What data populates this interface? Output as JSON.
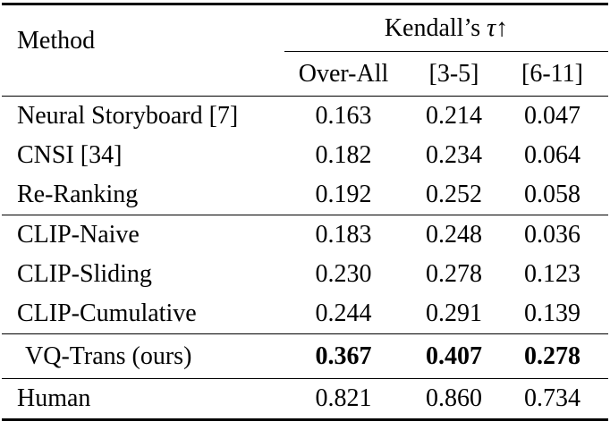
{
  "page": {
    "background_color": "#ffffff",
    "text_color": "#000000",
    "rule_color": "#000000"
  },
  "table": {
    "method_header": "Method",
    "group_header": {
      "prefix": "Kendall’s ",
      "tau": "τ",
      "arrow": "↑",
      "full": "Kendall’s τ↑"
    },
    "sub_headers": [
      "Over-All",
      "[3-5]",
      "[6-11]"
    ],
    "groups": [
      {
        "rows": [
          {
            "method": "Neural Storyboard [7]",
            "overall": "0.163",
            "r35": "0.214",
            "r611": "0.047",
            "bold": false,
            "indent": false
          },
          {
            "method": "CNSI [34]",
            "overall": "0.182",
            "r35": "0.234",
            "r611": "0.064",
            "bold": false,
            "indent": false
          },
          {
            "method": "Re-Ranking",
            "overall": "0.192",
            "r35": "0.252",
            "r611": "0.058",
            "bold": false,
            "indent": false
          }
        ]
      },
      {
        "rows": [
          {
            "method": "CLIP-Naive",
            "overall": "0.183",
            "r35": "0.248",
            "r611": "0.036",
            "bold": false,
            "indent": false
          },
          {
            "method": "CLIP-Sliding",
            "overall": "0.230",
            "r35": "0.278",
            "r611": "0.123",
            "bold": false,
            "indent": false
          },
          {
            "method": "CLIP-Cumulative",
            "overall": "0.244",
            "r35": "0.291",
            "r611": "0.139",
            "bold": false,
            "indent": false
          }
        ]
      },
      {
        "rows": [
          {
            "method": "VQ-Trans (ours)",
            "overall": "0.367",
            "r35": "0.407",
            "r611": "0.278",
            "bold": true,
            "indent": true
          }
        ]
      },
      {
        "rows": [
          {
            "method": "Human",
            "overall": "0.821",
            "r35": "0.860",
            "r611": "0.734",
            "bold": false,
            "indent": false
          }
        ]
      }
    ]
  },
  "chart_data": {
    "type": "table",
    "title": "Kendall’s τ↑",
    "columns": [
      "Method",
      "Over-All",
      "[3-5]",
      "[6-11]"
    ],
    "rows": [
      [
        "Neural Storyboard [7]",
        0.163,
        0.214,
        0.047
      ],
      [
        "CNSI [34]",
        0.182,
        0.234,
        0.064
      ],
      [
        "Re-Ranking",
        0.192,
        0.252,
        0.058
      ],
      [
        "CLIP-Naive",
        0.183,
        0.248,
        0.036
      ],
      [
        "CLIP-Sliding",
        0.23,
        0.278,
        0.123
      ],
      [
        "CLIP-Cumulative",
        0.244,
        0.291,
        0.139
      ],
      [
        "VQ-Trans (ours)",
        0.367,
        0.407,
        0.278
      ],
      [
        "Human",
        0.821,
        0.86,
        0.734
      ]
    ],
    "bold_row": "VQ-Trans (ours)",
    "group_separators_after": [
      "Re-Ranking",
      "CLIP-Cumulative",
      "VQ-Trans (ours)"
    ]
  }
}
